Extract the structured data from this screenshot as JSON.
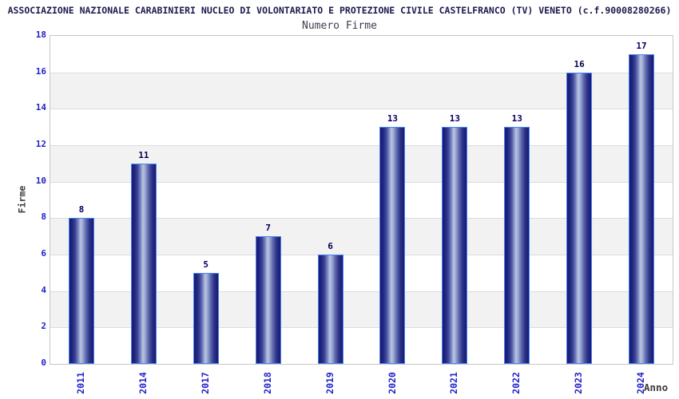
{
  "header": {
    "title": "ASSOCIAZIONE NAZIONALE CARABINIERI NUCLEO DI VOLONTARIATO E PROTEZIONE CIVILE CASTELFRANCO (TV) VENETO (c.f.90008280266)"
  },
  "chart_data": {
    "type": "bar",
    "title": "Numero Firme",
    "xlabel": "Anno",
    "ylabel": "Firme",
    "categories": [
      "2011",
      "2014",
      "2017",
      "2018",
      "2019",
      "2020",
      "2021",
      "2022",
      "2023",
      "2024"
    ],
    "values": [
      8,
      11,
      5,
      7,
      6,
      13,
      13,
      13,
      16,
      17
    ],
    "yticks": [
      0,
      2,
      4,
      6,
      8,
      10,
      12,
      14,
      16,
      18
    ],
    "ylim": [
      0,
      18
    ],
    "grid": "horizontal alternating bands",
    "legend_position": "none",
    "colors": {
      "title_color": "#1b1b4e",
      "subtitle_color": "#3c3c50",
      "bar_dark": "#191970",
      "bar_highlight": "#b9c3e2",
      "bar_border": "#4585f5",
      "tick_label_color": "#2222cc",
      "value_label_color": "#00005a",
      "axis_label_color": "#3c3c3c",
      "band_gray": "#f2f2f2",
      "plot_border": "#c6c6c6"
    }
  }
}
